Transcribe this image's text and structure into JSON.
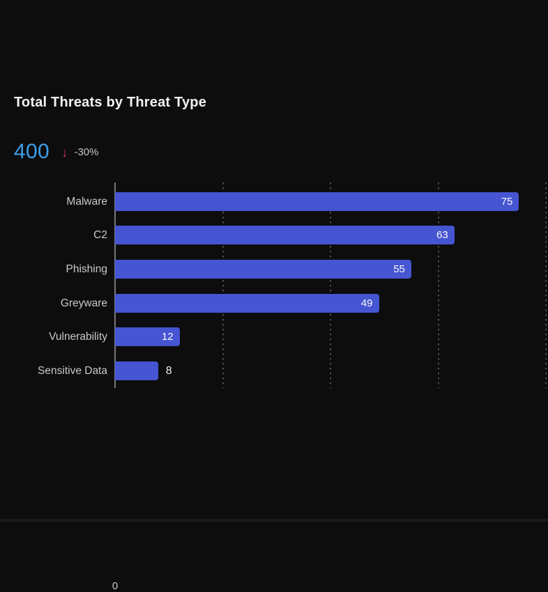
{
  "header": {
    "title": "Total Threats by Threat Type"
  },
  "kpi": {
    "value": "400",
    "trend_icon": "down-arrow",
    "delta": "-30%",
    "value_color": "#3CA0EB",
    "arrow_color": "#D02A68",
    "delta_text_color": "#C6C6C6"
  },
  "chart_data": {
    "type": "bar",
    "orientation": "horizontal",
    "title": "Total Threats by Threat Type",
    "categories": [
      "Malware",
      "C2",
      "Phishing",
      "Greyware",
      "Vulnerability",
      "Sensitive Data"
    ],
    "values": [
      75,
      63,
      55,
      49,
      12,
      8
    ],
    "xlabel": "",
    "ylabel": "",
    "xlim": [
      0,
      80
    ],
    "gridline_step": 20,
    "grid": true,
    "legend": false,
    "visible_tick_labels": [
      "0"
    ],
    "x_axis_zero_label": "0",
    "bar_color": "#4655D2",
    "category_label_color": "#C9C9C9",
    "value_label_color": "#FAFAFA",
    "gridline_color": "#4D4D4D",
    "axis_line_color": "#787878",
    "background_color": "#0D0D0E"
  }
}
